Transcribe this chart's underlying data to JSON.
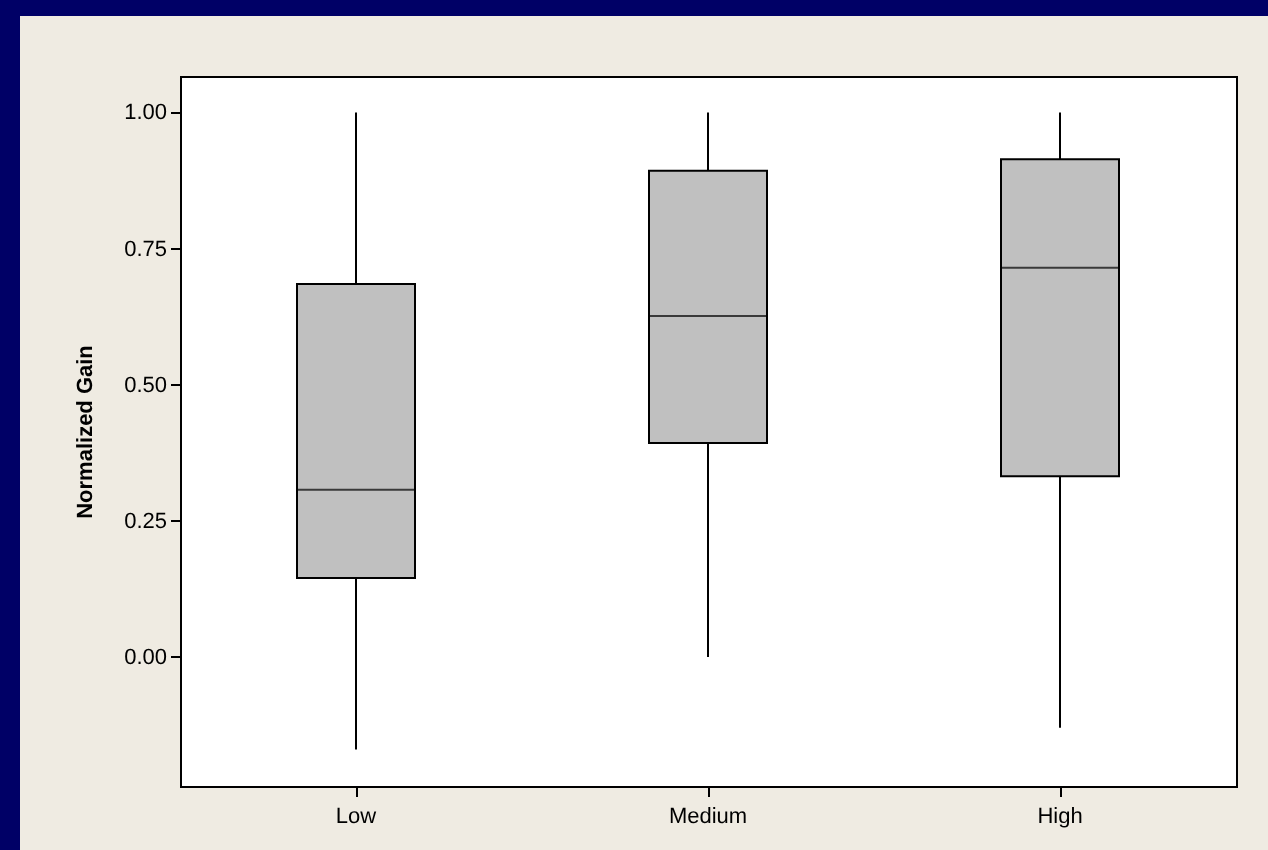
{
  "chart_data": {
    "type": "box",
    "ylabel": "Normalized Gain",
    "categories": [
      "Low",
      "Medium",
      "High"
    ],
    "series": [
      {
        "color": "#c0c0c0",
        "boxes": [
          {
            "low": -0.17,
            "q1": 0.145,
            "median": 0.307,
            "q3": 0.685,
            "high": 1.0
          },
          {
            "low": 0.0,
            "q1": 0.393,
            "median": 0.626,
            "q3": 0.893,
            "high": 1.0
          },
          {
            "low": -0.13,
            "q1": 0.332,
            "median": 0.715,
            "q3": 0.914,
            "high": 1.0
          }
        ]
      }
    ],
    "ylim": [
      -0.237,
      1.067
    ],
    "yticks": [
      {
        "value": 0,
        "label": "0.00"
      },
      {
        "value": 0.25,
        "label": "0.25"
      },
      {
        "value": 0.5,
        "label": "0.50"
      },
      {
        "value": 0.75,
        "label": "0.75"
      },
      {
        "value": 1,
        "label": "1.00"
      }
    ]
  }
}
